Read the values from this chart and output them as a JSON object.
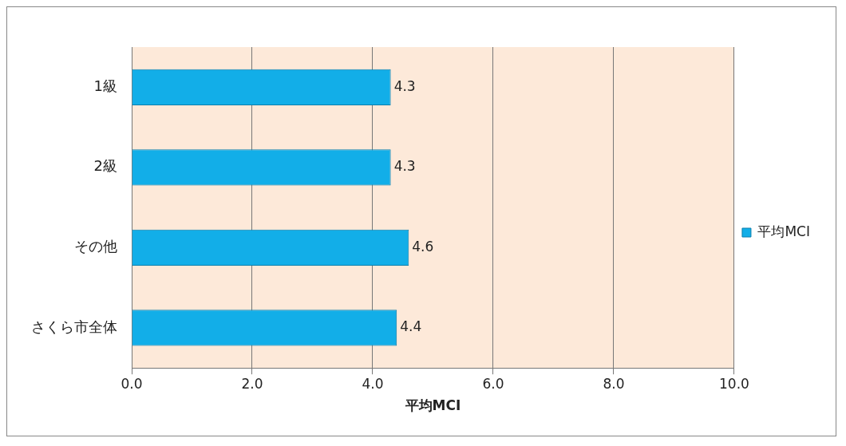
{
  "chart_data": {
    "type": "bar",
    "orientation": "horizontal",
    "xlabel": "平均MCI",
    "categories": [
      "1級",
      "2級",
      "その他",
      "さくら市全体"
    ],
    "series": [
      {
        "name": "平均MCI",
        "color": "#12aee8",
        "values": [
          4.3,
          4.3,
          4.6,
          4.4
        ]
      }
    ],
    "xlim": [
      0,
      10
    ],
    "xticks": [
      {
        "value": 0,
        "label": "0.0"
      },
      {
        "value": 2,
        "label": "2.0"
      },
      {
        "value": 4,
        "label": "4.0"
      },
      {
        "value": 6,
        "label": "6.0"
      },
      {
        "value": 8,
        "label": "8.0"
      },
      {
        "value": 10,
        "label": "10.0"
      }
    ],
    "grid": "x",
    "legend": "right",
    "data_labels": true
  }
}
